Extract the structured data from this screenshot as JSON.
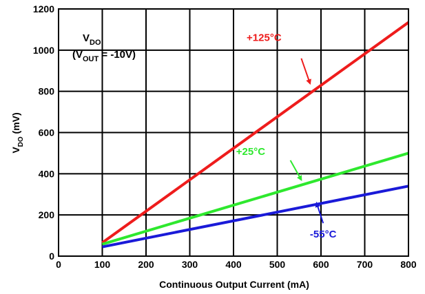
{
  "chart_data": {
    "type": "line",
    "title": "",
    "xlabel": "Continuous Output Current (mA)",
    "ylabel": {
      "main": "V",
      "sub": "DO",
      "unit": " (mV)"
    },
    "xlim": [
      0,
      800
    ],
    "ylim": [
      0,
      1200
    ],
    "xticks": [
      "0",
      "100",
      "200",
      "300",
      "400",
      "500",
      "600",
      "700",
      "800"
    ],
    "yticks": [
      "0",
      "200",
      "400",
      "600",
      "800",
      "1000",
      "1200"
    ],
    "grid": true,
    "annotation": {
      "line1": {
        "main": "V",
        "sub": "DO"
      },
      "line2": {
        "open": "(V",
        "sub": "OUT",
        "rest": " = -10V)"
      }
    },
    "series": [
      {
        "name": "+125°C",
        "color": "#ee1c1c",
        "x": [
          100,
          800
        ],
        "y": [
          65,
          1135
        ]
      },
      {
        "name": "+25°C",
        "color": "#2ee82e",
        "x": [
          100,
          800
        ],
        "y": [
          58,
          500
        ]
      },
      {
        "name": "-55°C",
        "color": "#1a1ad8",
        "x": [
          100,
          800
        ],
        "y": [
          45,
          340
        ]
      }
    ]
  }
}
